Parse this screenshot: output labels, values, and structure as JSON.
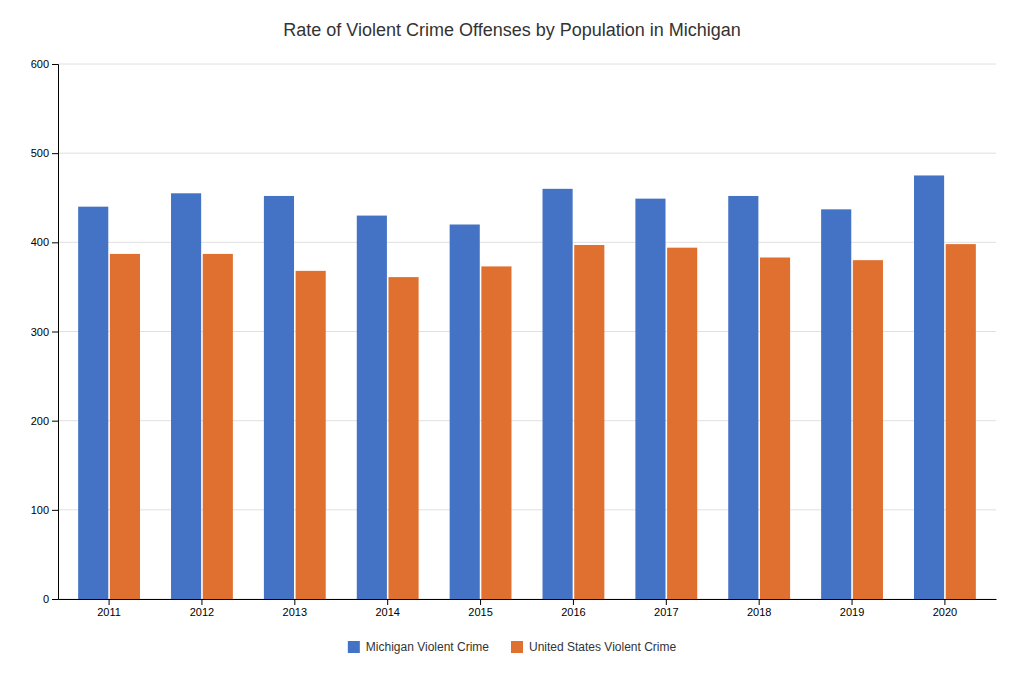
{
  "chart_data": {
    "type": "bar",
    "title": "Rate of Violent Crime Offenses by Population in Michigan",
    "categories": [
      "2011",
      "2012",
      "2013",
      "2014",
      "2015",
      "2016",
      "2017",
      "2018",
      "2019",
      "2020"
    ],
    "series": [
      {
        "name": "Michigan Violent Crime",
        "color": "#4472C4",
        "values": [
          440,
          455,
          452,
          430,
          420,
          460,
          449,
          452,
          437,
          475
        ]
      },
      {
        "name": "United States Violent Crime",
        "color": "#E07030",
        "values": [
          387,
          387,
          368,
          361,
          373,
          397,
          394,
          383,
          380,
          398
        ]
      }
    ],
    "ylim": [
      0,
      600
    ],
    "yticks": [
      0,
      100,
      200,
      300,
      400,
      500,
      600
    ],
    "grid": true,
    "legend": "bottom"
  }
}
